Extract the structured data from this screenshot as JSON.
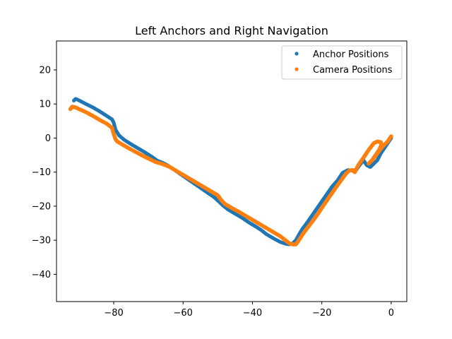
{
  "chart_data": {
    "type": "scatter",
    "title": "Left Anchors and Right Navigation",
    "xlabel": "",
    "ylabel": "",
    "xlim": [
      -96.5,
      4.5
    ],
    "ylim": [
      -48,
      28.5
    ],
    "x_ticks": [
      -80,
      -60,
      -40,
      -20,
      0
    ],
    "y_ticks": [
      20,
      10,
      0,
      -10,
      -20,
      -30,
      -40
    ],
    "x_tick_labels": [
      "−80",
      "−60",
      "−40",
      "−20",
      "0"
    ],
    "y_tick_labels": [
      "20",
      "10",
      "0",
      "−10",
      "−20",
      "−30",
      "−40"
    ],
    "grid": false,
    "legend": {
      "placement": "top-right",
      "entries": [
        "Anchor Positions",
        "Camera Positions"
      ]
    },
    "series": [
      {
        "name": "Anchor Positions",
        "color": "#1f77b4",
        "x": [
          -91.5,
          -91,
          -90.5,
          -89.5,
          -88,
          -86,
          -84,
          -82,
          -80.5,
          -80,
          -79.5,
          -78.5,
          -77,
          -75,
          -73,
          -71,
          -69,
          -67.5,
          -66,
          -64.5,
          -63,
          -61,
          -59,
          -57,
          -55,
          -53,
          -51,
          -49.5,
          -48.5,
          -47,
          -45,
          -43,
          -41,
          -39,
          -37.5,
          -36,
          -34,
          -32,
          -30.5,
          -29.5,
          -28.5,
          -27.5,
          -26.5,
          -25.5,
          -24.5,
          -23,
          -21.5,
          -20,
          -18.5,
          -17,
          -15.5,
          -14,
          -12.5,
          -11.2,
          -10.5,
          -9.5,
          -8,
          -7,
          -6,
          -5,
          -4,
          -3,
          -2,
          -1,
          0
        ],
        "y": [
          11,
          11.5,
          11.3,
          10.8,
          10,
          9,
          7.8,
          6.5,
          5.5,
          4.5,
          2.5,
          0.8,
          -0.5,
          -1.8,
          -3,
          -4.2,
          -5.5,
          -6.6,
          -7.2,
          -8,
          -9,
          -10.4,
          -11.8,
          -13.2,
          -14.6,
          -16,
          -17.4,
          -18.8,
          -19.8,
          -21,
          -22.2,
          -23.4,
          -24.8,
          -26,
          -27,
          -28.2,
          -29.4,
          -30.5,
          -31,
          -31.2,
          -31,
          -30,
          -28.2,
          -26.5,
          -25.2,
          -23,
          -20.8,
          -18.6,
          -16.4,
          -14.2,
          -12.5,
          -10.2,
          -9.4,
          -9.5,
          -10,
          -8.5,
          -6.5,
          -8,
          -8.5,
          -7.5,
          -6.5,
          -4.5,
          -3,
          -1.5,
          0
        ]
      },
      {
        "name": "Camera Positions",
        "color": "#ff7f0e",
        "x": [
          -92.5,
          -92,
          -91,
          -90,
          -88,
          -86,
          -84,
          -82,
          -80.5,
          -80,
          -79.5,
          -79,
          -78,
          -76,
          -74,
          -72,
          -70,
          -68,
          -66,
          -64,
          -62,
          -60,
          -58,
          -56,
          -54,
          -52,
          -50,
          -49,
          -48,
          -46,
          -44,
          -42,
          -40,
          -38,
          -36,
          -34,
          -32,
          -30.5,
          -29.5,
          -28.5,
          -27.5,
          -27,
          -26,
          -25,
          -23.5,
          -22,
          -20.5,
          -19,
          -17.5,
          -16,
          -14.5,
          -13,
          -12,
          -11,
          -10.5,
          -9.5,
          -8,
          -6.5,
          -5,
          -4,
          -3,
          -2.8,
          -3.5,
          -4.5,
          -5.5,
          -6.5,
          -5.5,
          -4,
          -2.5,
          -1,
          0
        ],
        "y": [
          8.5,
          9.2,
          9,
          8.5,
          7.6,
          6.5,
          5.3,
          4.2,
          3,
          1.2,
          -0.3,
          -1,
          -1.6,
          -2.8,
          -3.9,
          -5,
          -6,
          -7,
          -7.6,
          -8.4,
          -9.6,
          -10.8,
          -12,
          -13.2,
          -14.4,
          -15.6,
          -16.8,
          -18.2,
          -19.3,
          -20.5,
          -21.6,
          -22.8,
          -24,
          -25.2,
          -26.4,
          -27.6,
          -28.8,
          -30,
          -30.8,
          -31.2,
          -31.2,
          -30.6,
          -29,
          -27.5,
          -25.5,
          -23.5,
          -21.3,
          -19,
          -16.8,
          -14.6,
          -12.5,
          -10.4,
          -9.5,
          -9.4,
          -10,
          -8,
          -5.8,
          -3.5,
          -1.5,
          -1,
          -1.2,
          -2,
          -3.5,
          -5,
          -6.5,
          -7.5,
          -6.5,
          -4.5,
          -2.5,
          -1,
          0.5
        ]
      }
    ]
  }
}
